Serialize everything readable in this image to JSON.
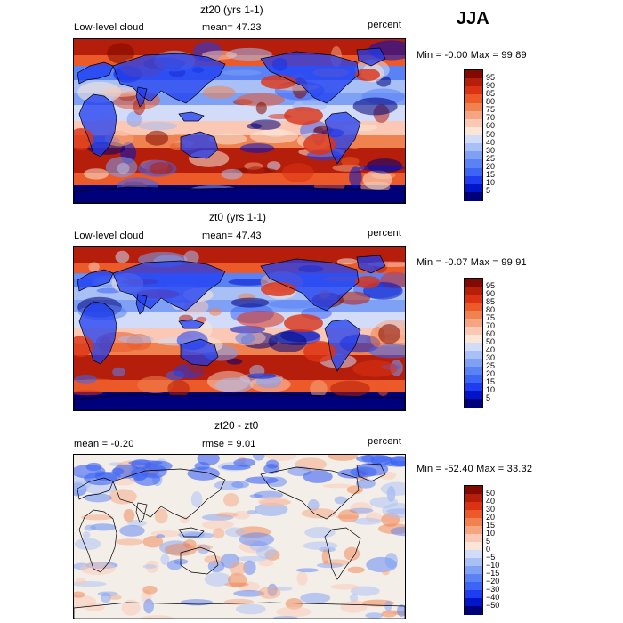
{
  "season": "JJA",
  "panels": [
    {
      "title": "zt20 (yrs 1-1)",
      "left_label": "Low-level cloud",
      "mid_label": "mean=  47.23",
      "units": "percent",
      "minmax": "Min =  -0.00  Max =  99.89",
      "kind": "cloud",
      "colorbar_labels": [
        "95",
        "90",
        "85",
        "80",
        "75",
        "70",
        "60",
        "50",
        "40",
        "30",
        "25",
        "20",
        "15",
        "10",
        "5"
      ]
    },
    {
      "title": "zt0 (yrs 1-1)",
      "left_label": "Low-level cloud",
      "mid_label": "mean=  47.43",
      "units": "percent",
      "minmax": "Min =  -0.07  Max =  99.91",
      "kind": "cloud",
      "colorbar_labels": [
        "95",
        "90",
        "85",
        "80",
        "75",
        "70",
        "60",
        "50",
        "40",
        "30",
        "25",
        "20",
        "15",
        "10",
        "5"
      ]
    },
    {
      "title": "zt20 - zt0",
      "left_label": "mean =  -0.20",
      "mid_label": "rmse =   9.01",
      "units": "percent",
      "minmax": "Min = -52.40  Max =  33.32",
      "kind": "diff",
      "colorbar_labels": [
        "50",
        "40",
        "30",
        "20",
        "15",
        "10",
        "5",
        "0",
        "−5",
        "−10",
        "−15",
        "−20",
        "−30",
        "−40",
        "−50"
      ]
    }
  ],
  "colors": {
    "scale": [
      "#00007a",
      "#0014c8",
      "#1e3cf0",
      "#3c64f5",
      "#5a82f5",
      "#7ea0f5",
      "#a8c0f5",
      "#d2dcf8",
      "#fae6d7",
      "#fac8b4",
      "#f5a582",
      "#f08250",
      "#eb5a28",
      "#dc3214",
      "#b41e0a",
      "#820a00"
    ]
  }
}
